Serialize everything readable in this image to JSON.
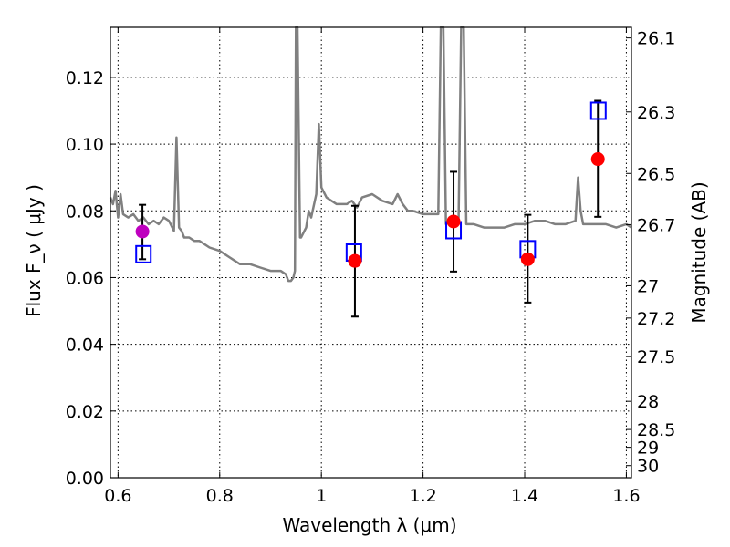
{
  "chart_data": {
    "type": "scatter",
    "xlabel": "Wavelength  λ (μm)",
    "ylabel": "Flux  F_ν  ( μJy )",
    "ylabel2": "Magnitude (AB)",
    "xlim": [
      0.585,
      1.61
    ],
    "ylim": [
      0.0,
      0.135
    ],
    "grid": true,
    "x_ticks": [
      0.6,
      0.8,
      1.0,
      1.2,
      1.4,
      1.6
    ],
    "x_tick_labels": [
      "0.6",
      "0.8",
      "1",
      "1.2",
      "1.4",
      "1.6"
    ],
    "y_ticks": [
      0.0,
      0.02,
      0.04,
      0.06,
      0.08,
      0.1,
      0.12
    ],
    "y_tick_labels": [
      "0.00",
      "0.02",
      "0.04",
      "0.06",
      "0.08",
      "0.10",
      "0.12"
    ],
    "mag_ticks": [
      "26.1",
      "26.3",
      "26.5",
      "26.7",
      "27",
      "27.2",
      "27.5",
      "28",
      "28.5",
      "29",
      "30"
    ],
    "colors": {
      "spectrum": "#808080",
      "observed": "#ff0000",
      "observed_alt": "#bf00bf",
      "model": "#0000ff",
      "errorbar": "#000000"
    },
    "spectrum": {
      "x": [
        0.585,
        0.59,
        0.595,
        0.6,
        0.605,
        0.61,
        0.62,
        0.63,
        0.64,
        0.65,
        0.66,
        0.67,
        0.68,
        0.69,
        0.7,
        0.71,
        0.715,
        0.72,
        0.725,
        0.73,
        0.74,
        0.75,
        0.76,
        0.78,
        0.8,
        0.82,
        0.84,
        0.86,
        0.88,
        0.9,
        0.92,
        0.93,
        0.935,
        0.94,
        0.945,
        0.948,
        0.95,
        0.953,
        0.958,
        0.96,
        0.97,
        0.975,
        0.98,
        0.99,
        0.995,
        1.0,
        1.01,
        1.02,
        1.03,
        1.04,
        1.05,
        1.06,
        1.07,
        1.08,
        1.1,
        1.12,
        1.14,
        1.15,
        1.16,
        1.17,
        1.18,
        1.2,
        1.22,
        1.23,
        1.235,
        1.24,
        1.245,
        1.25,
        1.26,
        1.27,
        1.275,
        1.28,
        1.285,
        1.29,
        1.3,
        1.32,
        1.34,
        1.36,
        1.38,
        1.4,
        1.42,
        1.44,
        1.46,
        1.48,
        1.5,
        1.505,
        1.51,
        1.515,
        1.52,
        1.54,
        1.56,
        1.58,
        1.6,
        1.61
      ],
      "y": [
        0.084,
        0.082,
        0.086,
        0.078,
        0.085,
        0.079,
        0.078,
        0.079,
        0.077,
        0.078,
        0.076,
        0.077,
        0.076,
        0.078,
        0.077,
        0.074,
        0.102,
        0.075,
        0.074,
        0.072,
        0.072,
        0.071,
        0.071,
        0.069,
        0.068,
        0.066,
        0.064,
        0.064,
        0.063,
        0.062,
        0.062,
        0.061,
        0.059,
        0.059,
        0.06,
        0.062,
        0.135,
        0.135,
        0.072,
        0.072,
        0.075,
        0.08,
        0.078,
        0.085,
        0.106,
        0.087,
        0.084,
        0.083,
        0.082,
        0.082,
        0.082,
        0.083,
        0.081,
        0.084,
        0.085,
        0.083,
        0.082,
        0.085,
        0.082,
        0.08,
        0.08,
        0.079,
        0.079,
        0.079,
        0.135,
        0.135,
        0.076,
        0.077,
        0.078,
        0.078,
        0.135,
        0.135,
        0.076,
        0.076,
        0.076,
        0.075,
        0.075,
        0.075,
        0.076,
        0.076,
        0.077,
        0.077,
        0.076,
        0.076,
        0.077,
        0.09,
        0.08,
        0.076,
        0.076,
        0.076,
        0.076,
        0.075,
        0.076,
        0.075
      ]
    },
    "observed": [
      {
        "x": 0.648,
        "y": 0.0738,
        "yerr_low": 0.0655,
        "yerr_high": 0.0818,
        "color": "#bf00bf"
      },
      {
        "x": 1.066,
        "y": 0.065,
        "yerr_low": 0.0483,
        "yerr_high": 0.0815,
        "color": "#ff0000"
      },
      {
        "x": 1.26,
        "y": 0.0768,
        "yerr_low": 0.0618,
        "yerr_high": 0.0917,
        "color": "#ff0000"
      },
      {
        "x": 1.406,
        "y": 0.0655,
        "yerr_low": 0.0525,
        "yerr_high": 0.0788,
        "color": "#ff0000"
      },
      {
        "x": 1.544,
        "y": 0.0955,
        "yerr_low": 0.0782,
        "yerr_high": 0.113,
        "color": "#ff0000"
      }
    ],
    "model_points": [
      {
        "x": 0.65,
        "y": 0.067
      },
      {
        "x": 1.064,
        "y": 0.0675
      },
      {
        "x": 1.26,
        "y": 0.0742
      },
      {
        "x": 1.406,
        "y": 0.0685
      },
      {
        "x": 1.545,
        "y": 0.11
      }
    ]
  }
}
